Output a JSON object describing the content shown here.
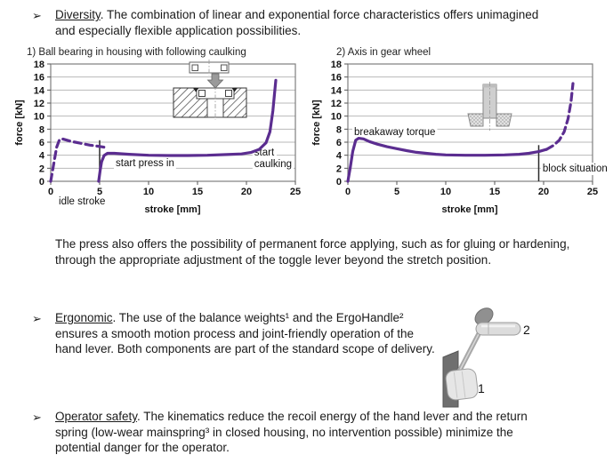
{
  "page": {
    "background": "#ffffff",
    "text_color": "#1a1a1a"
  },
  "bullets": {
    "marker": "➢",
    "diversity": {
      "term": "Diversity",
      "text": ". The combination of linear and exponential force characteristics offers unimagined and especially flexible application possibilities."
    },
    "ergonomic": {
      "term": "Ergonomic",
      "text": ". The use of the balance weights¹ and the ErgoHandle² ensures a smooth motion process and joint-friendly operation of the hand lever. Both components are part of the standard scope of delivery."
    },
    "operator_safety": {
      "term": "Operator safety",
      "text": ". The kinematics reduce the recoil energy of the hand lever and the return spring (low-wear mainspring³ in closed housing, no intervention possible) minimize the potential danger for the operator."
    }
  },
  "paragraph": "The press also offers the possibility of permanent force applying, such as for gluing or hardening, through the appropriate adjustment of the toggle lever beyond the stretch position.",
  "figure": {
    "description": "hand lever with balance weight and ErgoHandle",
    "labels": {
      "weight": "1",
      "handle": "2"
    }
  },
  "chart_data": [
    {
      "type": "line",
      "title": "1) Ball bearing in housing with following caulking",
      "xlabel": "stroke [mm]",
      "ylabel": "force [kN]",
      "xlim": [
        0,
        25
      ],
      "ylim": [
        0,
        18
      ],
      "xticks": [
        0,
        5,
        10,
        15,
        20,
        25
      ],
      "yticks": [
        0,
        2,
        4,
        6,
        8,
        10,
        12,
        14,
        16,
        18
      ],
      "grid": "horizontal",
      "legend": "none",
      "line_color": "#5b2d90",
      "marker_line": {
        "x": 5,
        "y0": 0.35,
        "y1": 6.3
      },
      "annotations": [
        {
          "text": "idle stroke",
          "x": 0.82,
          "y": -3.55,
          "anchor": "start",
          "bg": false
        },
        {
          "text": "start press in",
          "x": 6.64,
          "y": 2.35,
          "anchor": "start",
          "bg": true
        },
        {
          "text": "start\ncaulking",
          "x": 20.8,
          "y": 3.95,
          "anchor": "start",
          "bg": true
        }
      ],
      "series": [
        {
          "name": "idle stroke (dashed)",
          "style": "dashed",
          "points": [
            [
              0,
              0
            ],
            [
              0.3,
              2.6
            ],
            [
              0.6,
              5.2
            ],
            [
              0.9,
              6.4
            ],
            [
              1.2,
              6.5
            ],
            [
              2,
              6.15
            ],
            [
              3,
              5.85
            ],
            [
              4,
              5.55
            ],
            [
              5,
              5.35
            ],
            [
              5.6,
              5.2
            ]
          ]
        },
        {
          "name": "press in and caulking (solid)",
          "style": "solid",
          "points": [
            [
              4.9,
              0
            ],
            [
              5.05,
              1.6
            ],
            [
              5.2,
              3.0
            ],
            [
              5.45,
              3.95
            ],
            [
              5.8,
              4.3
            ],
            [
              6.5,
              4.3
            ],
            [
              8,
              4.15
            ],
            [
              10,
              4.0
            ],
            [
              12,
              3.95
            ],
            [
              14,
              3.95
            ],
            [
              16,
              4.0
            ],
            [
              18,
              4.1
            ],
            [
              19.5,
              4.2
            ],
            [
              20.5,
              4.45
            ],
            [
              21.3,
              4.9
            ],
            [
              22,
              5.9
            ],
            [
              22.4,
              7.6
            ],
            [
              22.7,
              10.8
            ],
            [
              23,
              15.5
            ]
          ]
        }
      ]
    },
    {
      "type": "line",
      "title": "2) Axis in gear wheel",
      "xlabel": "stroke [mm]",
      "ylabel": "force [kN]",
      "xlim": [
        0,
        25
      ],
      "ylim": [
        0,
        18
      ],
      "xticks": [
        0,
        5,
        10,
        15,
        20,
        25
      ],
      "yticks": [
        0,
        2,
        4,
        6,
        8,
        10,
        12,
        14,
        16,
        18
      ],
      "grid": "horizontal",
      "legend": "none",
      "line_color": "#5b2d90",
      "marker_line": {
        "x": 19.5,
        "y0": 0,
        "y1": 5.55
      },
      "annotations": [
        {
          "text": "breakaway torque",
          "x": 0.64,
          "y": 7.1,
          "anchor": "start",
          "bg": true
        },
        {
          "text": "block situation",
          "x": 19.9,
          "y": 1.5,
          "anchor": "start",
          "bg": true
        }
      ],
      "series": [
        {
          "name": "press in (solid)",
          "style": "solid",
          "points": [
            [
              0,
              0
            ],
            [
              0.25,
              2.2
            ],
            [
              0.5,
              4.6
            ],
            [
              0.8,
              6.3
            ],
            [
              1.1,
              6.6
            ],
            [
              1.6,
              6.5
            ],
            [
              2.2,
              6.1
            ],
            [
              3,
              5.7
            ],
            [
              4,
              5.3
            ],
            [
              5,
              5.0
            ],
            [
              6,
              4.7
            ],
            [
              7,
              4.45
            ],
            [
              8,
              4.3
            ],
            [
              9,
              4.15
            ],
            [
              10,
              4.05
            ],
            [
              12,
              4.0
            ],
            [
              14,
              4.0
            ],
            [
              16,
              4.05
            ],
            [
              17.5,
              4.15
            ],
            [
              18.5,
              4.3
            ],
            [
              19.5,
              4.55
            ],
            [
              20.3,
              4.9
            ]
          ]
        },
        {
          "name": "block situation (dashed)",
          "style": "dashed",
          "points": [
            [
              20.3,
              4.9
            ],
            [
              21,
              5.5
            ],
            [
              21.6,
              6.3
            ],
            [
              22.1,
              7.6
            ],
            [
              22.5,
              9.6
            ],
            [
              22.8,
              12.2
            ],
            [
              23,
              15
            ]
          ]
        }
      ]
    }
  ]
}
